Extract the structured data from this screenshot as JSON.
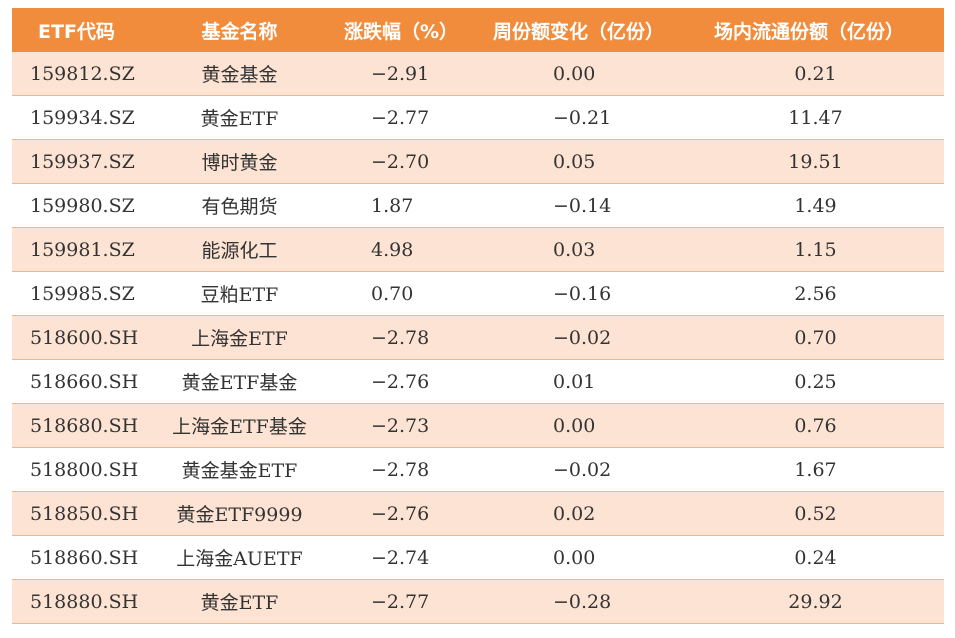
{
  "table": {
    "headers": [
      "ETF代码",
      "基金名称",
      "涨跌幅（%）",
      "周份额变化（亿份）",
      "场内流通份额（亿份）"
    ],
    "rows": [
      {
        "code": "159812.SZ",
        "name": "黄金基金",
        "change_pct": "−2.91",
        "weekly_share_change": "0.00",
        "floating_shares": "0.21"
      },
      {
        "code": "159934.SZ",
        "name": "黄金ETF",
        "change_pct": "−2.77",
        "weekly_share_change": "−0.21",
        "floating_shares": "11.47"
      },
      {
        "code": "159937.SZ",
        "name": "博时黄金",
        "change_pct": "−2.70",
        "weekly_share_change": "0.05",
        "floating_shares": "19.51"
      },
      {
        "code": "159980.SZ",
        "name": "有色期货",
        "change_pct": "1.87",
        "weekly_share_change": "−0.14",
        "floating_shares": "1.49"
      },
      {
        "code": "159981.SZ",
        "name": "能源化工",
        "change_pct": "4.98",
        "weekly_share_change": "0.03",
        "floating_shares": "1.15"
      },
      {
        "code": "159985.SZ",
        "name": "豆粕ETF",
        "change_pct": "0.70",
        "weekly_share_change": "−0.16",
        "floating_shares": "2.56"
      },
      {
        "code": "518600.SH",
        "name": "上海金ETF",
        "change_pct": "−2.78",
        "weekly_share_change": "−0.02",
        "floating_shares": "0.70"
      },
      {
        "code": "518660.SH",
        "name": "黄金ETF基金",
        "change_pct": "−2.76",
        "weekly_share_change": "0.01",
        "floating_shares": "0.25"
      },
      {
        "code": "518680.SH",
        "name": "上海金ETF基金",
        "change_pct": "−2.73",
        "weekly_share_change": "0.00",
        "floating_shares": "0.76"
      },
      {
        "code": "518800.SH",
        "name": "黄金基金ETF",
        "change_pct": "−2.78",
        "weekly_share_change": "−0.02",
        "floating_shares": "1.67"
      },
      {
        "code": "518850.SH",
        "name": "黄金ETF9999",
        "change_pct": "−2.76",
        "weekly_share_change": "0.02",
        "floating_shares": "0.52"
      },
      {
        "code": "518860.SH",
        "name": "上海金AUETF",
        "change_pct": "−2.74",
        "weekly_share_change": "0.00",
        "floating_shares": "0.24"
      },
      {
        "code": "518880.SH",
        "name": "黄金ETF",
        "change_pct": "−2.77",
        "weekly_share_change": "−0.28",
        "floating_shares": "29.92"
      }
    ]
  },
  "colors": {
    "header_bg": "#f08c3c",
    "header_text": "#ffffff",
    "row_odd_bg": "#fde3d3",
    "row_even_bg": "#ffffff",
    "row_border": "#f2b68a",
    "cell_text": "#333333"
  }
}
